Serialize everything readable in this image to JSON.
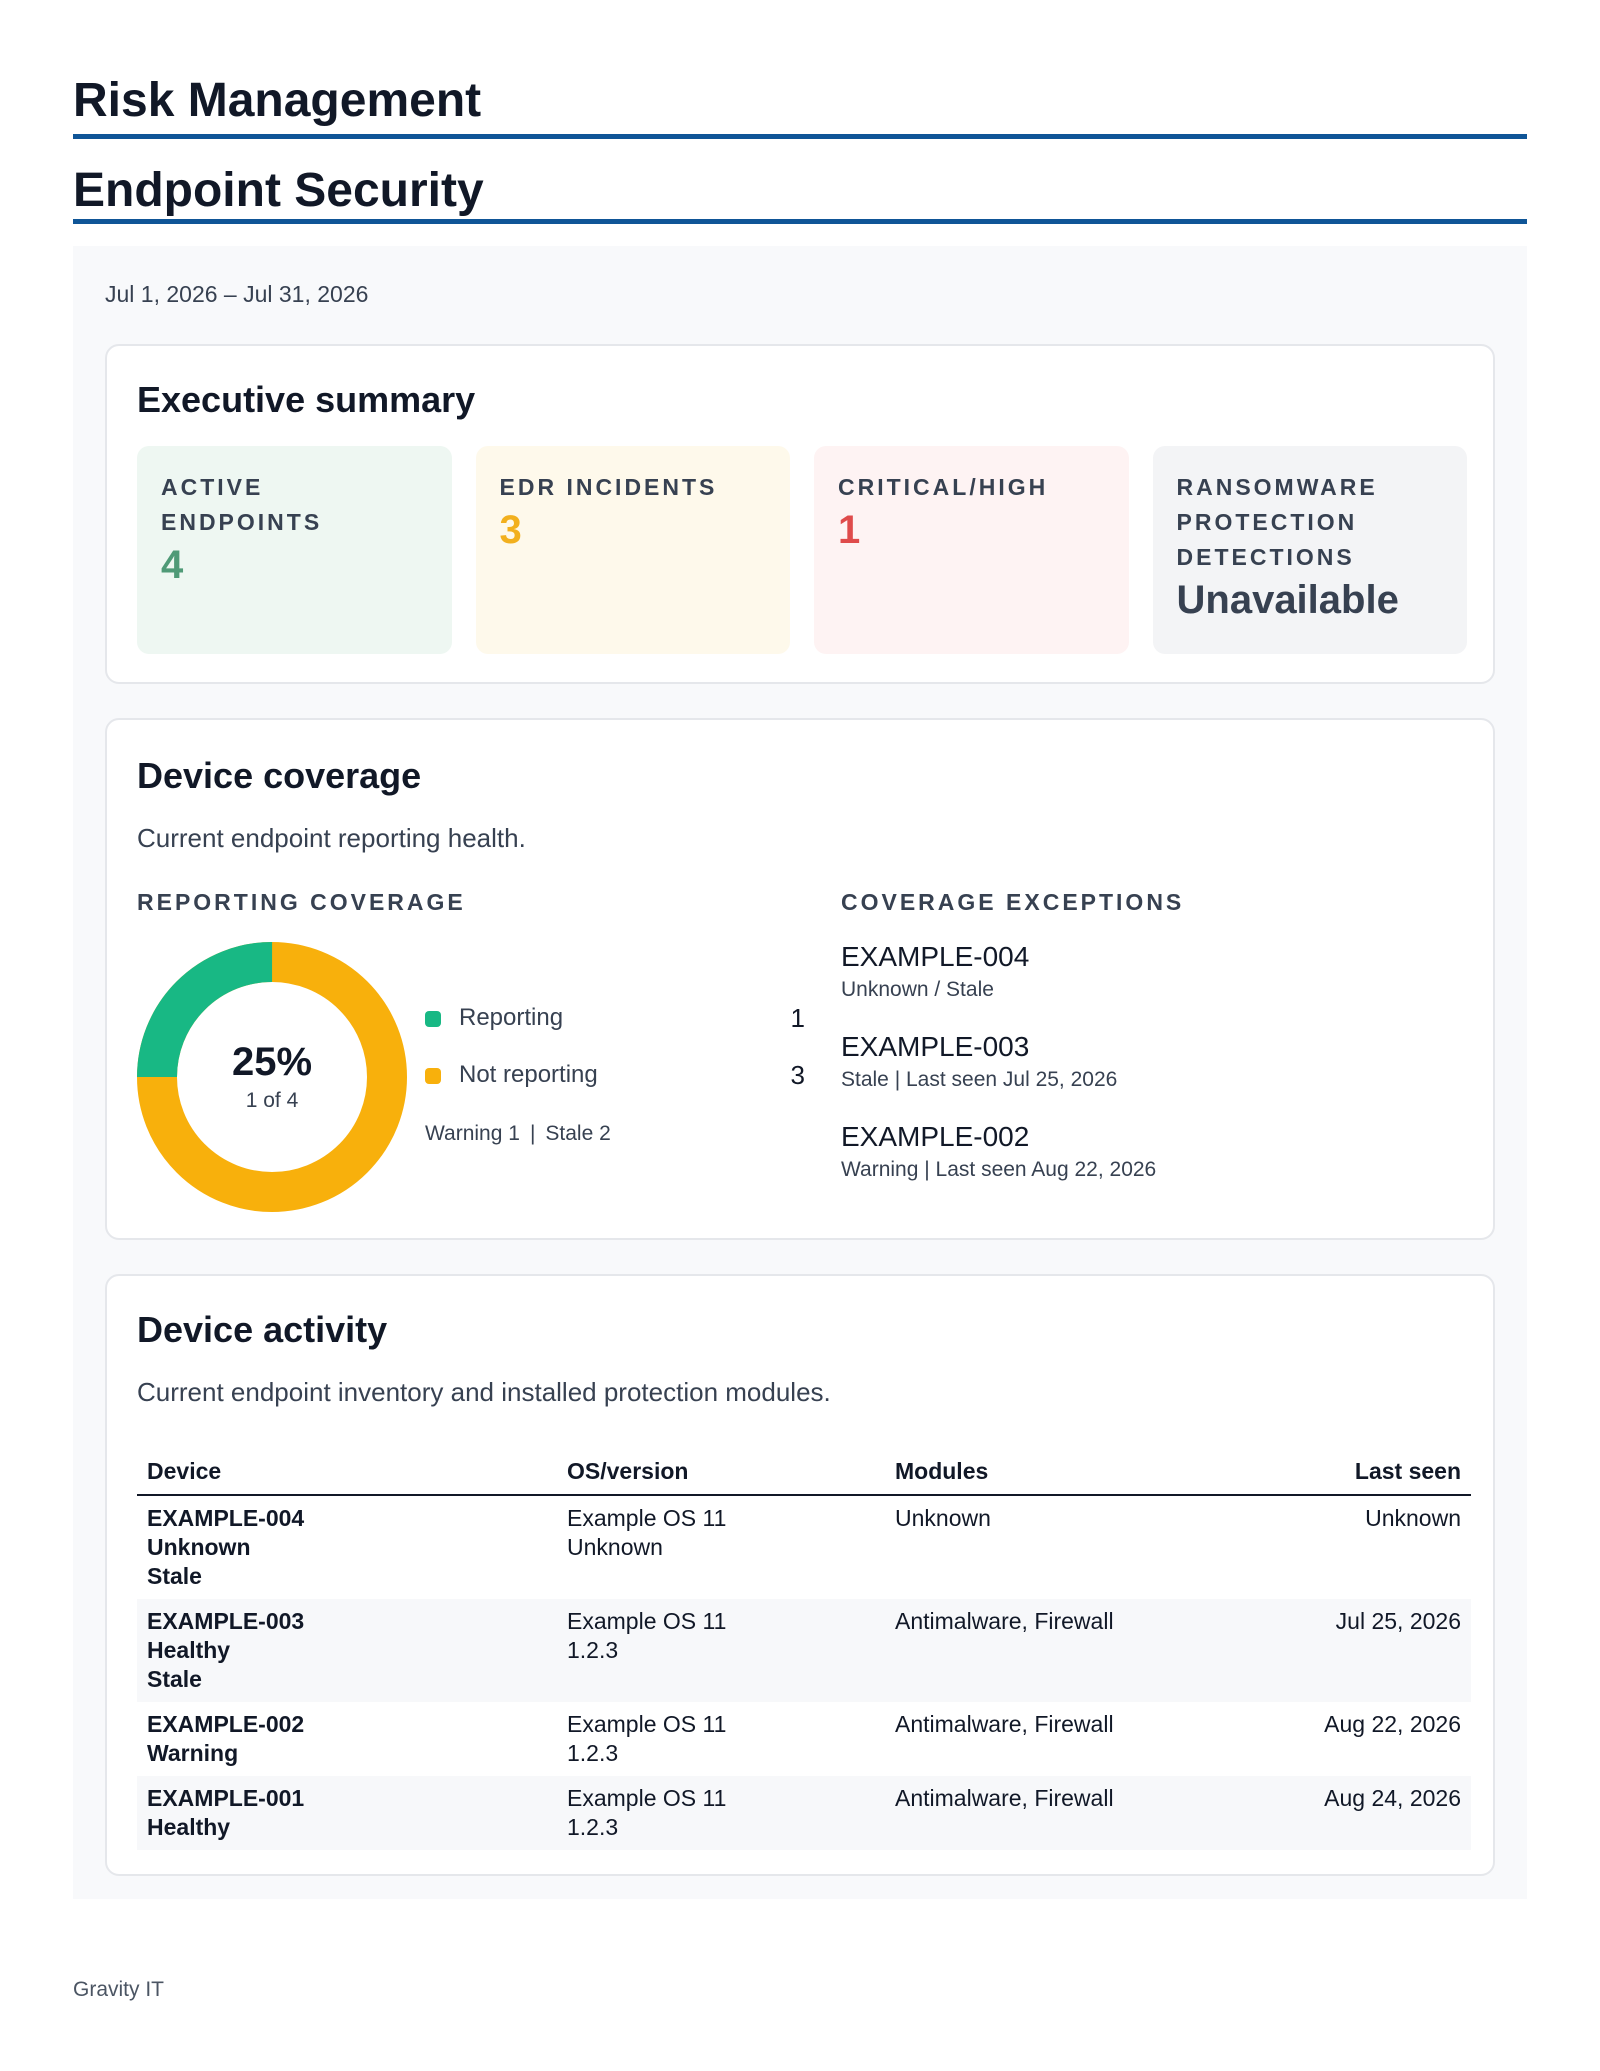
{
  "header": {
    "title": "Risk Management",
    "subtitle": "Endpoint Security"
  },
  "date_range": "Jul 1, 2026 – Jul 31, 2026",
  "executive_summary": {
    "title": "Executive summary",
    "kpis": [
      {
        "label": "Active endpoints",
        "value": "4",
        "color": "#4f9a77"
      },
      {
        "label": "EDR incidents",
        "value": "3",
        "color": "#f2b01e"
      },
      {
        "label": "Critical/High",
        "value": "1",
        "color": "#df4b4b"
      },
      {
        "label": "Ransomware protection detections",
        "value": "Unavailable",
        "color": "#374151"
      }
    ]
  },
  "device_coverage": {
    "title": "Device coverage",
    "subtitle": "Current endpoint reporting health.",
    "reporting_label": "Reporting coverage",
    "exceptions_label": "Coverage exceptions",
    "donut": {
      "percent": "25%",
      "fraction": "1 of 4"
    },
    "legend": [
      {
        "label": "Reporting",
        "count": "1",
        "color": "#18b884"
      },
      {
        "label": "Not reporting",
        "count": "3",
        "color": "#f8b00c"
      }
    ],
    "note": {
      "warning": "Warning 1",
      "separator": "|",
      "stale": "Stale 2"
    },
    "exceptions": [
      {
        "name": "EXAMPLE-004",
        "detail": "Unknown / Stale"
      },
      {
        "name": "EXAMPLE-003",
        "detail": "Stale | Last seen Jul 25, 2026"
      },
      {
        "name": "EXAMPLE-002",
        "detail": "Warning | Last seen Aug 22, 2026"
      }
    ]
  },
  "device_activity": {
    "title": "Device activity",
    "subtitle": "Current endpoint inventory and installed protection modules.",
    "columns": {
      "device": "Device",
      "os": "OS/version",
      "modules": "Modules",
      "last_seen": "Last seen"
    },
    "rows": [
      {
        "name": "EXAMPLE-004",
        "health": "Unknown",
        "status": "Stale",
        "os": "Example OS 11",
        "version": "Unknown",
        "modules": "Unknown",
        "last_seen": "Unknown"
      },
      {
        "name": "EXAMPLE-003",
        "health": "Healthy",
        "status": "Stale",
        "os": "Example OS 11",
        "version": "1.2.3",
        "modules": "Antimalware, Firewall",
        "last_seen": "Jul 25, 2026"
      },
      {
        "name": "EXAMPLE-002",
        "health": "Warning",
        "status": "",
        "os": "Example OS 11",
        "version": "1.2.3",
        "modules": "Antimalware, Firewall",
        "last_seen": "Aug 22, 2026"
      },
      {
        "name": "EXAMPLE-001",
        "health": "Healthy",
        "status": "",
        "os": "Example OS 11",
        "version": "1.2.3",
        "modules": "Antimalware, Firewall",
        "last_seen": "Aug 24, 2026"
      }
    ]
  },
  "footer": "Gravity IT"
}
